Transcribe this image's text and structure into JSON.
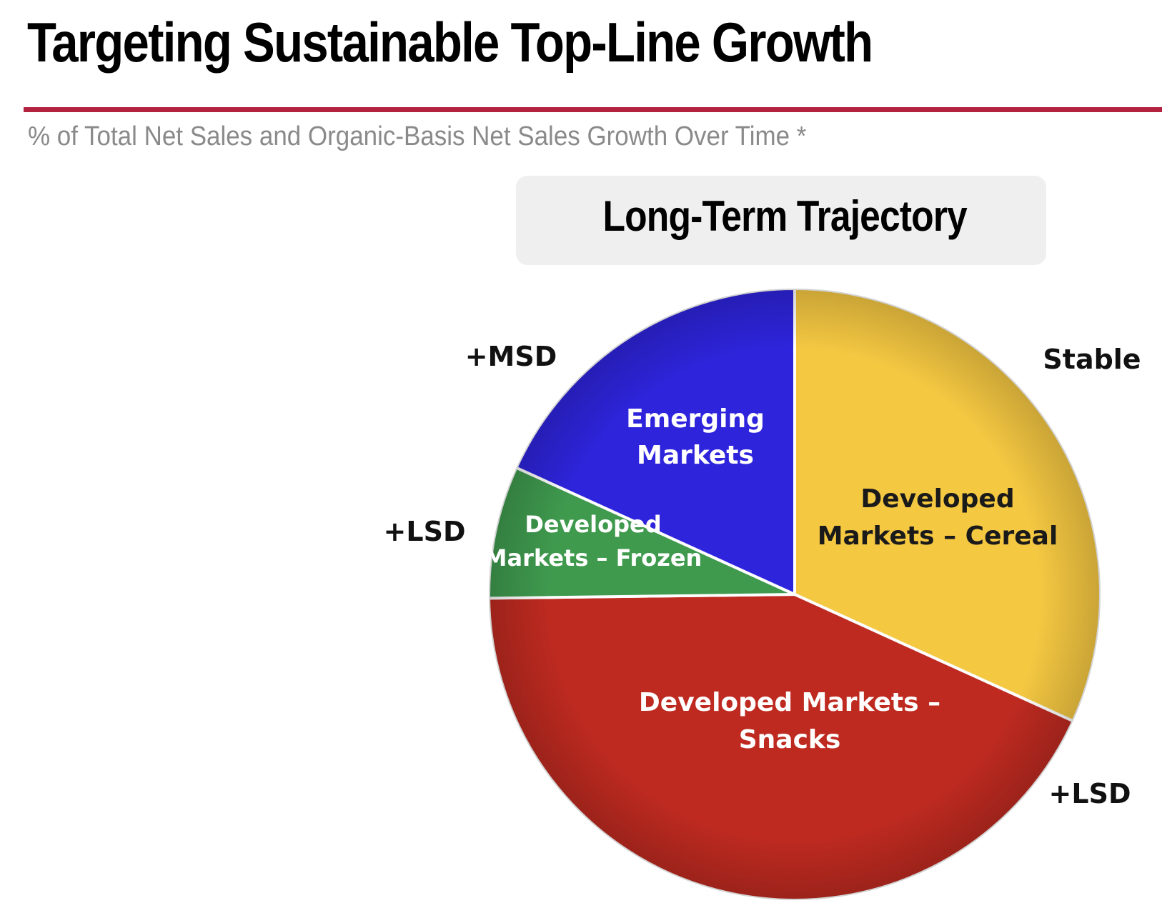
{
  "header": {
    "title": "Targeting Sustainable Top-Line Growth",
    "subtitle": "% of Total Net Sales and Organic-Basis Net Sales Growth Over Time *"
  },
  "chart_data": {
    "type": "pie",
    "title": "Long-Term Trajectory",
    "start_angle_deg": 0,
    "slices": [
      {
        "label": [
          "Developed",
          "Markets – Cereal"
        ],
        "share": 0.318,
        "growth": "Stable",
        "color": "#f5c842"
      },
      {
        "label": [
          "Developed Markets –",
          "Snacks"
        ],
        "share": 0.43,
        "growth": "+LSD",
        "color": "#be2a20"
      },
      {
        "label": [
          "Developed",
          "Markets – Frozen"
        ],
        "share": 0.07,
        "growth": "+LSD",
        "color": "#3f9a4e"
      },
      {
        "label": [
          "Emerging",
          "Markets"
        ],
        "share": 0.182,
        "growth": "+MSD",
        "color": "#2e24dc"
      }
    ]
  }
}
